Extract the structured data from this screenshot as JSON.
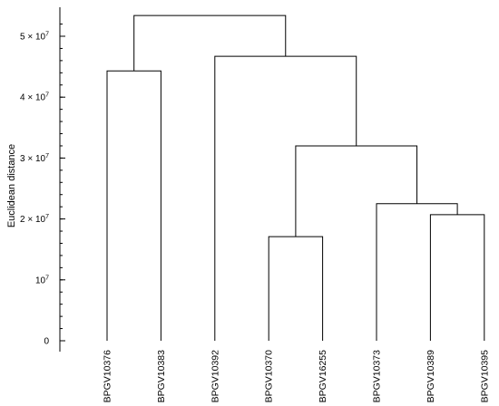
{
  "chart_data": {
    "type": "dendrogram",
    "ylabel": "Euclidean distance",
    "ylim": [
      0,
      53000000
    ],
    "yticks": [
      {
        "value": 0,
        "mantissa": "0",
        "exp": ""
      },
      {
        "value": 10000000,
        "mantissa": "10",
        "exp": "7"
      },
      {
        "value": 20000000,
        "mantissa": "2 × 10",
        "exp": "7"
      },
      {
        "value": 30000000,
        "mantissa": "3 × 10",
        "exp": "7"
      },
      {
        "value": 40000000,
        "mantissa": "4 × 10",
        "exp": "7"
      },
      {
        "value": 50000000,
        "mantissa": "5 × 10",
        "exp": "7"
      }
    ],
    "minor_tick_step": 2000000,
    "leaves": [
      "BPGV10376",
      "BPGV10383",
      "BPGV10392",
      "BPGV10370",
      "BPGV16255",
      "BPGV10373",
      "BPGV10389",
      "BPGV10395"
    ],
    "merges": [
      {
        "left": 6,
        "right": 7,
        "height": 20700000
      },
      {
        "left": 3,
        "right": 4,
        "height": 17100000
      },
      {
        "left": 5,
        "right": "m0",
        "height": 22500000
      },
      {
        "left": "m1",
        "right": "m2",
        "height": 32000000
      },
      {
        "left": 2,
        "right": "m3",
        "height": 46700000
      },
      {
        "left": 0,
        "right": 1,
        "height": 44300000
      },
      {
        "left": "m5",
        "right": "m4",
        "height": 53400000
      }
    ]
  }
}
